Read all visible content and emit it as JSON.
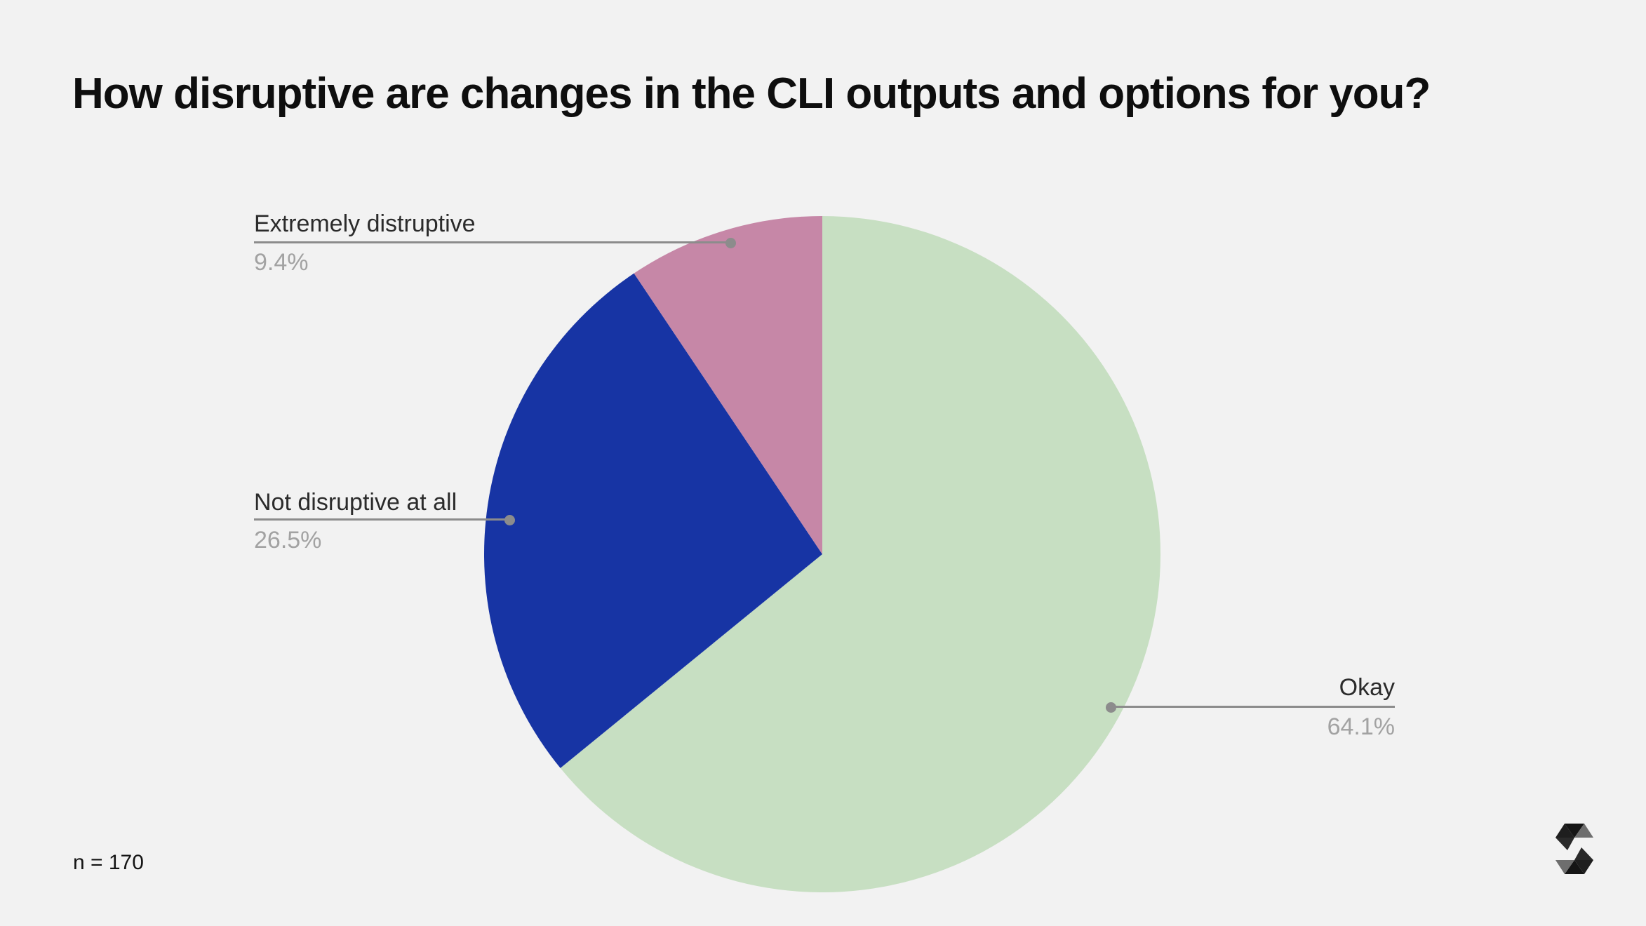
{
  "page": {
    "background_color": "#f2f2f2"
  },
  "title": "How disruptive are changes in the CLI outputs and options for you?",
  "footnote": "n = 170",
  "logo": {
    "icon": "faceted-hexagon-s-logo"
  },
  "chart_data": {
    "type": "pie",
    "title": "How disruptive are changes in the CLI outputs and options for you?",
    "sample_size_label": "n = 170",
    "sample_size": 170,
    "categories": [
      "Okay",
      "Not disruptive at all",
      "Extremely distruptive"
    ],
    "values": [
      64.1,
      26.5,
      9.4
    ],
    "unit": "%",
    "rotation": "clockwise-from-12-oclock",
    "legend": "none",
    "labels": "outside-with-leader-lines",
    "leader_line_color": "#8c8c8c",
    "label_color": "#2b2b2b",
    "pct_color": "#a2a2a2",
    "slices": [
      {
        "label": "Okay",
        "value": 64.1,
        "pct_text": "64.1%",
        "color": "#c7dfc2"
      },
      {
        "label": "Not disruptive at all",
        "value": 26.5,
        "pct_text": "26.5%",
        "color": "#1734a4"
      },
      {
        "label": "Extremely distruptive",
        "value": 9.4,
        "pct_text": "9.4%",
        "color": "#c687a7"
      }
    ]
  }
}
